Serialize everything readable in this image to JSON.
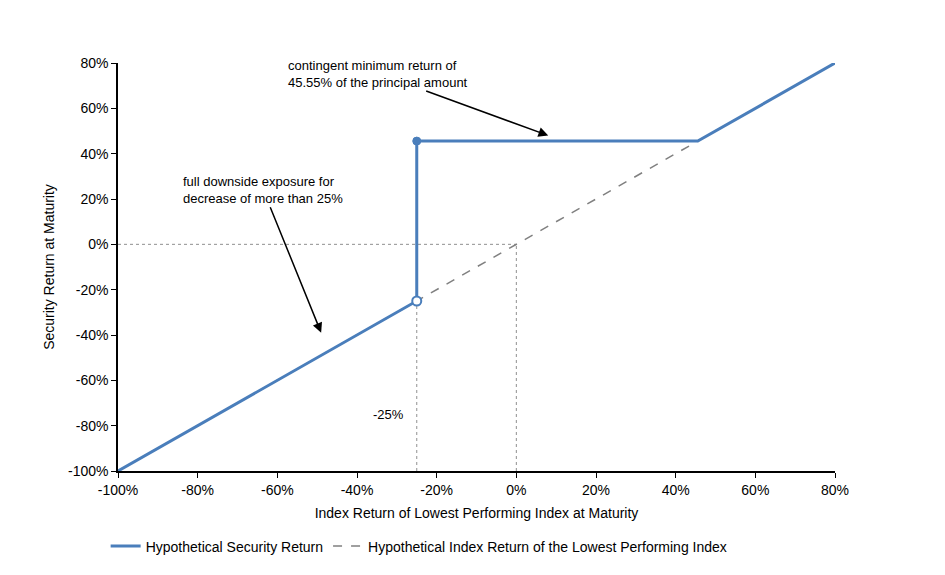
{
  "chart_data": {
    "type": "line",
    "x_label": "Index Return of Lowest Performing Index at Maturity",
    "y_label": "Security Return at Maturity",
    "series": [
      {
        "name": "Hypothetical Security Return",
        "color": "#4A7EBB",
        "line_style": "solid",
        "x": [
          -100,
          -25,
          -25,
          45.55,
          80
        ],
        "values": [
          -100,
          -25,
          45.55,
          45.55,
          80
        ]
      },
      {
        "name": "Hypothetical Index Return of the Lowest Performing Index",
        "color": "#808080",
        "line_style": "dash",
        "x": [
          -100,
          80
        ],
        "values": [
          -100,
          80
        ]
      }
    ],
    "xlim": [
      -100,
      80
    ],
    "xticks": [
      {
        "value": -100,
        "label": "-100%"
      },
      {
        "value": -80,
        "label": "-80%"
      },
      {
        "value": -60,
        "label": "-60%"
      },
      {
        "value": -40,
        "label": "-40%"
      },
      {
        "value": -20,
        "label": "-20%"
      },
      {
        "value": 0,
        "label": "0%"
      },
      {
        "value": 20,
        "label": "20%"
      },
      {
        "value": 40,
        "label": "40%"
      },
      {
        "value": 60,
        "label": "60%"
      },
      {
        "value": 80,
        "label": "80%"
      }
    ],
    "ylim": [
      -100,
      80
    ],
    "yticks": [
      {
        "value": -100,
        "label": "-100%"
      },
      {
        "value": -80,
        "label": "-80%"
      },
      {
        "value": -60,
        "label": "-60%"
      },
      {
        "value": -40,
        "label": "-40%"
      },
      {
        "value": -20,
        "label": "-20%"
      },
      {
        "value": 0,
        "label": "0%"
      },
      {
        "value": 20,
        "label": "20%"
      },
      {
        "value": 40,
        "label": "40%"
      },
      {
        "value": 60,
        "label": "60%"
      },
      {
        "value": 80,
        "label": "80%"
      }
    ],
    "reference_lines": {
      "x": [
        -25,
        0
      ],
      "y": 0
    },
    "annotations": [
      {
        "text": [
          "contingent minimum return of",
          "45.55% of the principal amount"
        ]
      },
      {
        "text": [
          "full downside exposure for",
          "decrease of more than 25%"
        ]
      },
      {
        "text": [
          "-25%"
        ]
      }
    ],
    "grid": false,
    "legend": "bottom"
  }
}
